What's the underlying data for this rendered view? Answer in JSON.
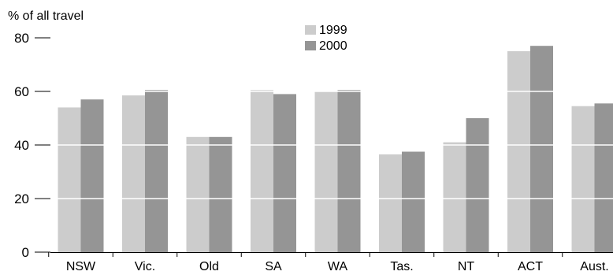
{
  "chart_data": {
    "type": "bar",
    "ylabel": "% of all travel",
    "categories": [
      "NSW",
      "Vic.",
      "Old",
      "SA",
      "WA",
      "Tas.",
      "NT",
      "ACT",
      "Aust."
    ],
    "series": [
      {
        "name": "1999",
        "color": "#cccccc",
        "values": [
          54,
          58.5,
          43,
          60.5,
          60,
          36.5,
          41,
          75,
          54.5
        ]
      },
      {
        "name": "2000",
        "color": "#959595",
        "values": [
          57,
          60.5,
          43,
          59,
          60.5,
          37.5,
          50,
          77,
          55.5
        ]
      }
    ],
    "ylim": [
      0,
      80
    ],
    "yticks": [
      "0",
      "20",
      "40",
      "60",
      "80"
    ],
    "grid": true,
    "gridline_color": "#ffffff",
    "legend_position": "top-center"
  }
}
